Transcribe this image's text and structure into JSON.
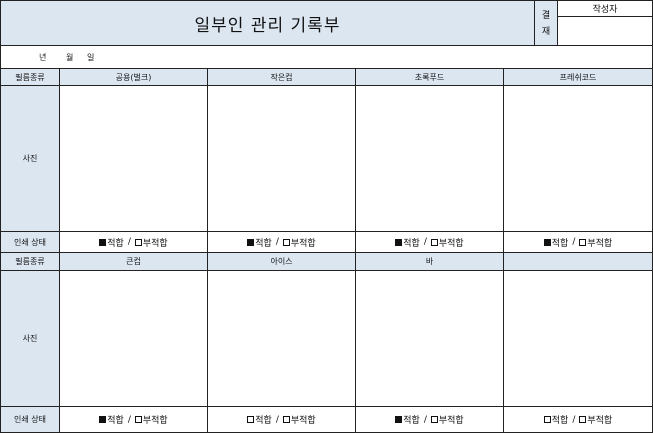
{
  "doc": {
    "title": "일부인 관리 기록부",
    "approval_label_1": "결",
    "approval_label_2": "재",
    "writer_label": "작성자",
    "date_year": "년",
    "date_month": "월",
    "date_day": "일"
  },
  "labels": {
    "film_type": "필름종류",
    "photo": "사진",
    "print_status": "인쇄 상태",
    "ok": "적합",
    "slash": "/",
    "bad": "부적합"
  },
  "sections": [
    {
      "items": [
        {
          "name": "공용(벌크)",
          "ok_checked": true,
          "bad_checked": false
        },
        {
          "name": "작은컵",
          "ok_checked": true,
          "bad_checked": false
        },
        {
          "name": "초록푸드",
          "ok_checked": true,
          "bad_checked": false
        },
        {
          "name": "프레쉬코드",
          "ok_checked": true,
          "bad_checked": false
        }
      ]
    },
    {
      "items": [
        {
          "name": "큰컵",
          "ok_checked": true,
          "bad_checked": false
        },
        {
          "name": "아이스",
          "ok_checked": false,
          "bad_checked": false
        },
        {
          "name": "바",
          "ok_checked": true,
          "bad_checked": false
        },
        {
          "name": "",
          "ok_checked": false,
          "bad_checked": false
        }
      ]
    }
  ]
}
